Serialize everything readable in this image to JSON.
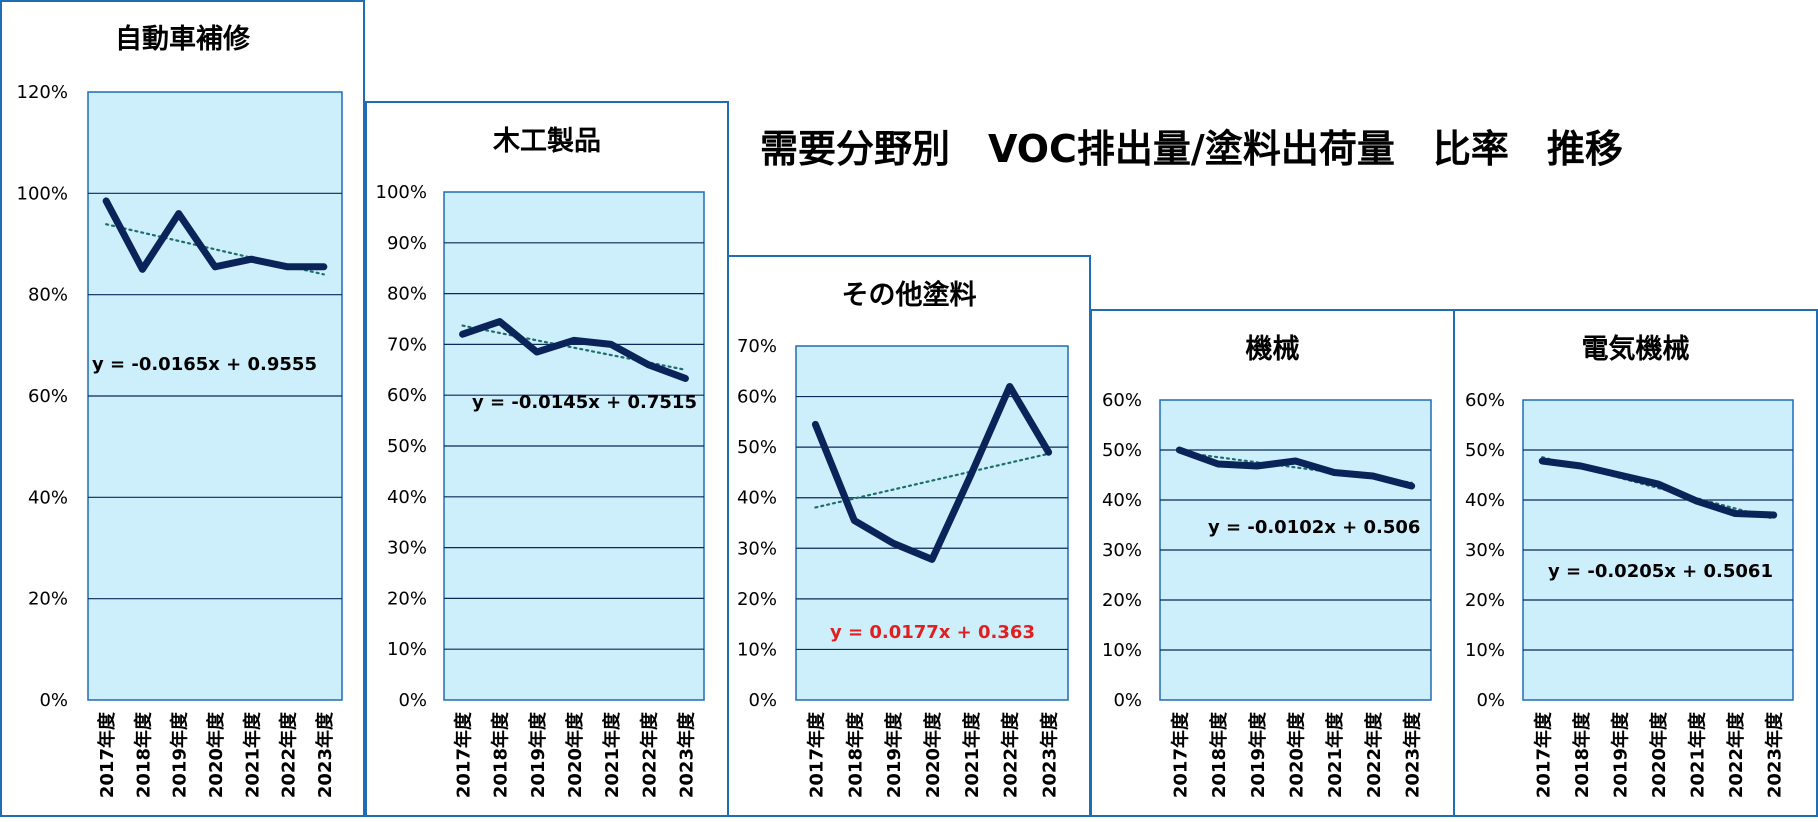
{
  "main_title": "需要分野別　VOC排出量/塗料出荷量　比率　推移",
  "colors": {
    "panel_border": "#1f6db5",
    "plot_fill": "#cdeefb",
    "plot_border": "#1f6db5",
    "gridline": "#0b2a5a",
    "series_line": "#0a2459",
    "trend_line": "#1f6d70",
    "equation": "#000000",
    "equation_highlight": "#e02020"
  },
  "chart_data": [
    {
      "type": "line",
      "title": "自動車補修",
      "categories": [
        "2017年度",
        "2018年度",
        "2019年度",
        "2020年度",
        "2021年度",
        "2022年度",
        "2023年度"
      ],
      "series": [
        {
          "values": [
            0.985,
            0.85,
            0.96,
            0.855,
            0.87,
            0.855,
            0.855
          ]
        }
      ],
      "trendline": {
        "slope": -0.0165,
        "intercept": 0.9555,
        "equation": "y = -0.0165x + 0.9555"
      },
      "ylim": [
        0,
        1.2
      ],
      "yticks": [
        0,
        0.2,
        0.4,
        0.6,
        0.8,
        1.0,
        1.2
      ],
      "ytick_labels": [
        "0%",
        "20%",
        "40%",
        "60%",
        "80%",
        "100%",
        "120%"
      ],
      "grid": true
    },
    {
      "type": "line",
      "title": "木工製品",
      "categories": [
        "2017年度",
        "2018年度",
        "2019年度",
        "2020年度",
        "2021年度",
        "2022年度",
        "2023年度"
      ],
      "series": [
        {
          "values": [
            0.72,
            0.745,
            0.685,
            0.708,
            0.7,
            0.66,
            0.633
          ]
        }
      ],
      "trendline": {
        "slope": -0.0145,
        "intercept": 0.7515,
        "equation": "y = -0.0145x + 0.7515"
      },
      "ylim": [
        0,
        1.0
      ],
      "yticks": [
        0,
        0.1,
        0.2,
        0.3,
        0.4,
        0.5,
        0.6,
        0.7,
        0.8,
        0.9,
        1.0
      ],
      "ytick_labels": [
        "0%",
        "10%",
        "20%",
        "30%",
        "40%",
        "50%",
        "60%",
        "70%",
        "80%",
        "90%",
        "100%"
      ],
      "grid": true
    },
    {
      "type": "line",
      "title": "その他塗料",
      "categories": [
        "2017年度",
        "2018年度",
        "2019年度",
        "2020年度",
        "2021年度",
        "2022年度",
        "2023年度"
      ],
      "series": [
        {
          "values": [
            0.545,
            0.355,
            0.31,
            0.278,
            0.445,
            0.62,
            0.49
          ]
        }
      ],
      "trendline": {
        "slope": 0.0177,
        "intercept": 0.363,
        "equation": "y = 0.0177x + 0.363"
      },
      "ylim": [
        0,
        0.7
      ],
      "yticks": [
        0,
        0.1,
        0.2,
        0.3,
        0.4,
        0.5,
        0.6,
        0.7
      ],
      "ytick_labels": [
        "0%",
        "10%",
        "20%",
        "30%",
        "40%",
        "50%",
        "60%",
        "70%"
      ],
      "grid": true
    },
    {
      "type": "line",
      "title": "機械",
      "categories": [
        "2017年度",
        "2018年度",
        "2019年度",
        "2020年度",
        "2021年度",
        "2022年度",
        "2023年度"
      ],
      "series": [
        {
          "values": [
            0.5,
            0.472,
            0.468,
            0.478,
            0.455,
            0.448,
            0.428
          ]
        }
      ],
      "trendline": {
        "slope": -0.0102,
        "intercept": 0.506,
        "equation": "y = -0.0102x + 0.506"
      },
      "ylim": [
        0,
        0.6
      ],
      "yticks": [
        0,
        0.1,
        0.2,
        0.3,
        0.4,
        0.5,
        0.6
      ],
      "ytick_labels": [
        "0%",
        "10%",
        "20%",
        "30%",
        "40%",
        "50%",
        "60%"
      ],
      "grid": true
    },
    {
      "type": "line",
      "title": "電気機械",
      "categories": [
        "2017年度",
        "2018年度",
        "2019年度",
        "2020年度",
        "2021年度",
        "2022年度",
        "2023年度"
      ],
      "series": [
        {
          "values": [
            0.478,
            0.468,
            0.45,
            0.432,
            0.398,
            0.373,
            0.37
          ]
        }
      ],
      "trendline": {
        "slope": -0.0205,
        "intercept": 0.5061,
        "equation": "y = -0.0205x + 0.5061"
      },
      "ylim": [
        0,
        0.6
      ],
      "yticks": [
        0,
        0.1,
        0.2,
        0.3,
        0.4,
        0.5,
        0.6
      ],
      "ytick_labels": [
        "0%",
        "10%",
        "20%",
        "30%",
        "40%",
        "50%",
        "60%"
      ],
      "grid": true
    }
  ]
}
